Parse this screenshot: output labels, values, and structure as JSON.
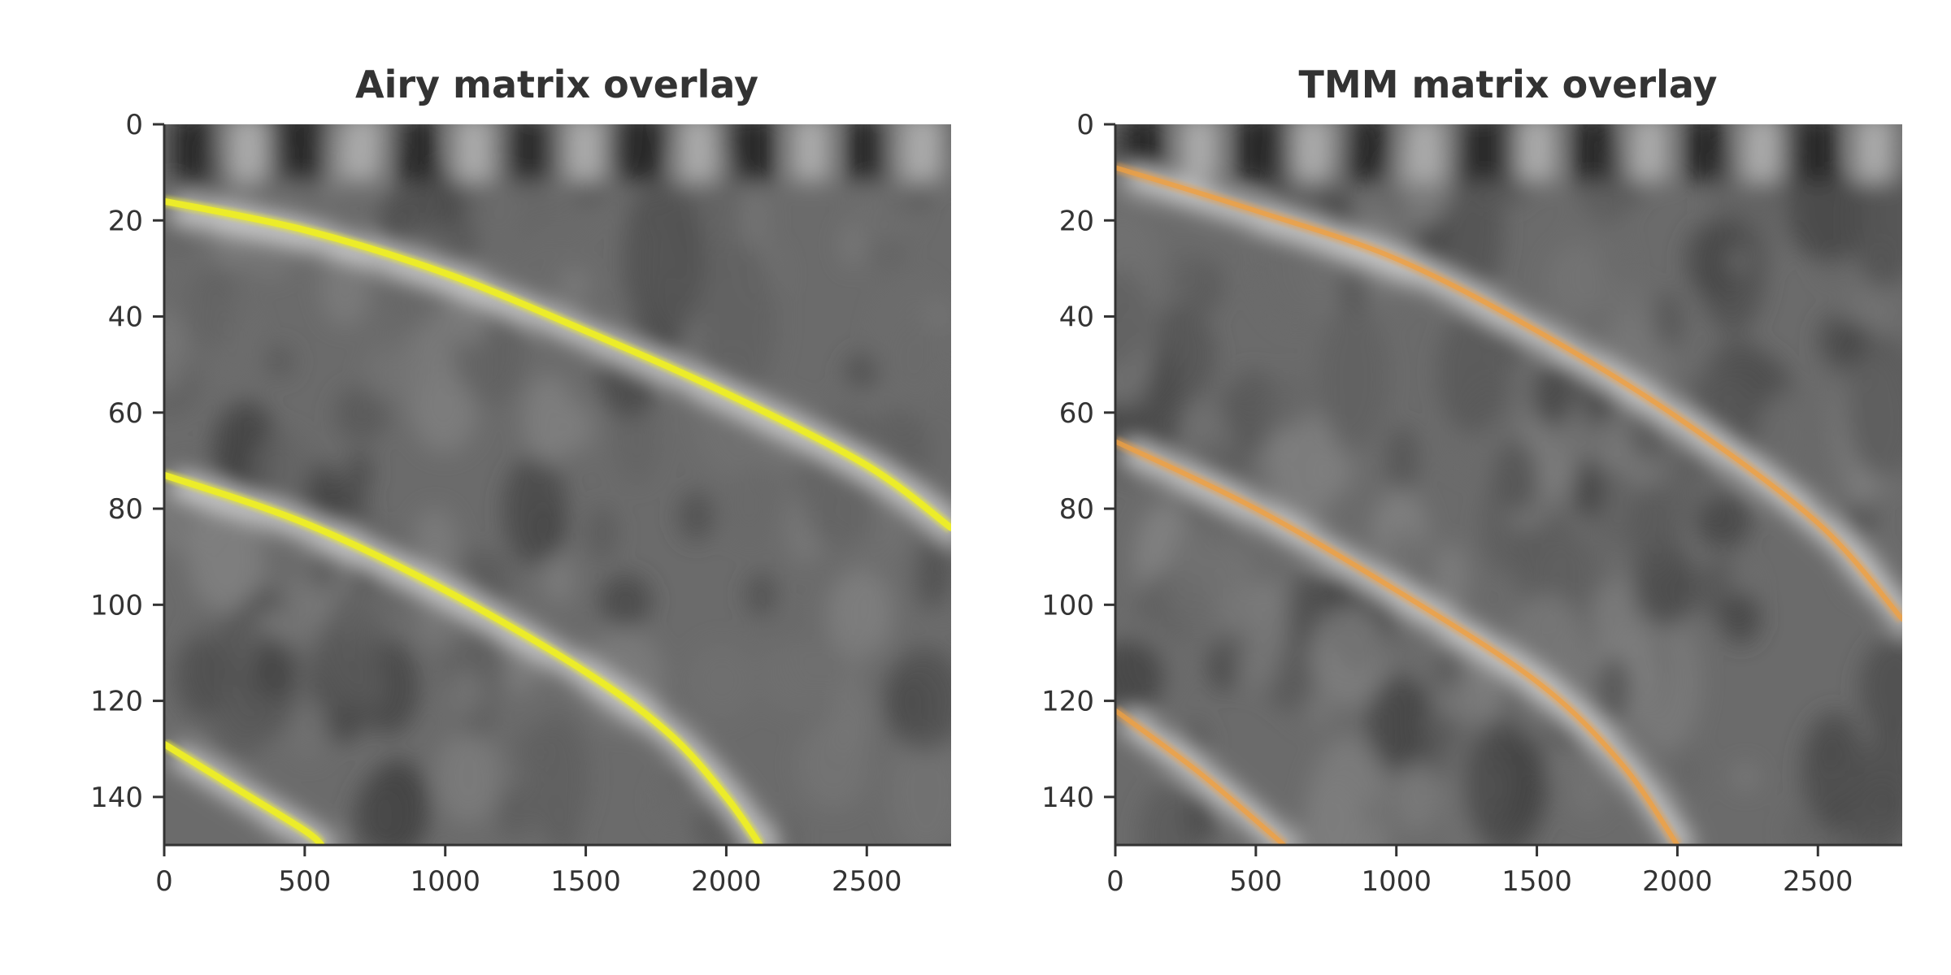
{
  "chart_data": [
    {
      "type": "heatmap",
      "title": "Airy matrix overlay",
      "xlabel": "",
      "ylabel": "",
      "xlim": [
        0,
        2800
      ],
      "ylim": [
        150,
        0
      ],
      "x_ticks": [
        0,
        500,
        1000,
        1500,
        2000,
        2500
      ],
      "y_ticks": [
        0,
        20,
        40,
        60,
        80,
        100,
        120,
        140
      ],
      "colormap": "grayscale",
      "overlay_color": "#ecec2a",
      "overlay_curves": [
        {
          "points": [
            [
              0,
              16
            ],
            [
              500,
              22
            ],
            [
              1000,
              31
            ],
            [
              1500,
              43
            ],
            [
              2000,
              56
            ],
            [
              2500,
              71
            ],
            [
              2800,
              84
            ]
          ]
        },
        {
          "points": [
            [
              0,
              73
            ],
            [
              500,
              83
            ],
            [
              1000,
              97
            ],
            [
              1500,
              114
            ],
            [
              1800,
              127
            ],
            [
              2000,
              140
            ],
            [
              2120,
              150
            ]
          ]
        },
        {
          "points": [
            [
              0,
              129
            ],
            [
              250,
              138
            ],
            [
              500,
              147
            ],
            [
              560,
              150
            ]
          ]
        }
      ]
    },
    {
      "type": "heatmap",
      "title": "TMM matrix overlay",
      "xlabel": "",
      "ylabel": "",
      "xlim": [
        0,
        2800
      ],
      "ylim": [
        150,
        0
      ],
      "x_ticks": [
        0,
        500,
        1000,
        1500,
        2000,
        2500
      ],
      "y_ticks": [
        0,
        20,
        40,
        60,
        80,
        100,
        120,
        140
      ],
      "colormap": "grayscale",
      "overlay_color": "#f0a040",
      "overlay_curves": [
        {
          "points": [
            [
              0,
              9
            ],
            [
              500,
              18
            ],
            [
              1000,
              28
            ],
            [
              1500,
              43
            ],
            [
              2000,
              61
            ],
            [
              2500,
              83
            ],
            [
              2800,
              103
            ]
          ]
        },
        {
          "points": [
            [
              0,
              66
            ],
            [
              500,
              80
            ],
            [
              1000,
              97
            ],
            [
              1500,
              116
            ],
            [
              1800,
              133
            ],
            [
              2000,
              150
            ]
          ]
        },
        {
          "points": [
            [
              0,
              122
            ],
            [
              300,
              135
            ],
            [
              600,
              150
            ]
          ]
        }
      ]
    }
  ]
}
